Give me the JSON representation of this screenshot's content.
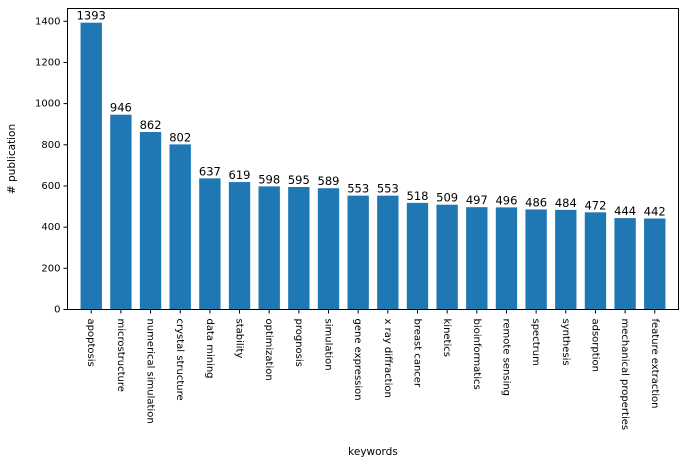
{
  "chart_data": {
    "type": "bar",
    "categories": [
      "apoptosis",
      "microstructure",
      "numerical simulation",
      "crystal structure",
      "data mining",
      "stability",
      "optimization",
      "prognosis",
      "simulation",
      "gene expression",
      "x ray diffraction",
      "breast cancer",
      "kinetics",
      "bioinformatics",
      "remote sensing",
      "spectrum",
      "synthesis",
      "adsorption",
      "mechanical properties",
      "feature extraction"
    ],
    "values": [
      1393,
      946,
      862,
      802,
      637,
      619,
      598,
      595,
      589,
      553,
      553,
      518,
      509,
      497,
      496,
      486,
      484,
      472,
      444,
      442
    ],
    "value_labels": [
      "1393",
      "946",
      "862",
      "802",
      "637",
      "619",
      "598",
      "595",
      "589",
      "553",
      "553",
      "518",
      "509",
      "497",
      "496",
      "486",
      "484",
      "472",
      "444",
      "442"
    ],
    "xlabel": "keywords",
    "ylabel": "# publication",
    "ylim": [
      0,
      1462
    ],
    "yticks": [
      0,
      200,
      400,
      600,
      800,
      1000,
      1200,
      1400
    ],
    "ytick_labels": [
      "0",
      "200",
      "400",
      "600",
      "800",
      "1000",
      "1200",
      "1400"
    ],
    "bar_color": "#1f77b4",
    "grid": false
  }
}
